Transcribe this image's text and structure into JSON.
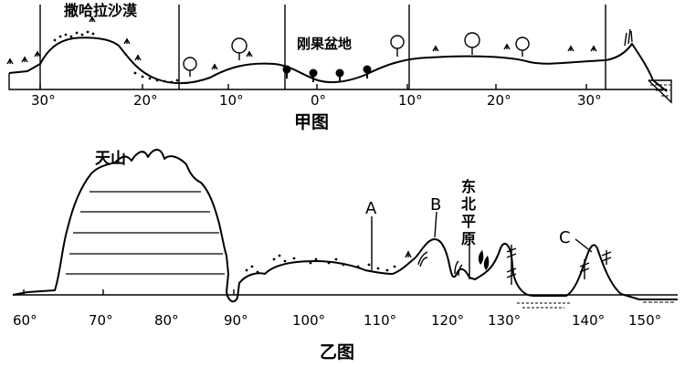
{
  "top": {
    "caption": "甲图",
    "labels": {
      "sahara": "撒哈拉沙漠",
      "congo": "刚果盆地"
    },
    "ticks": [
      "30°",
      "20°",
      "10°",
      "0°",
      "10°",
      "20°",
      "30°"
    ]
  },
  "bottom": {
    "caption": "乙图",
    "labels": {
      "tianshan": "天山",
      "a": "A",
      "b": "B",
      "c": "C",
      "ne_plain": [
        "东",
        "北",
        "平",
        "原"
      ]
    },
    "ticks": [
      "60°",
      "70°",
      "80°",
      "90°",
      "100°",
      "110°",
      "120°",
      "130°",
      "140°",
      "150°"
    ]
  }
}
